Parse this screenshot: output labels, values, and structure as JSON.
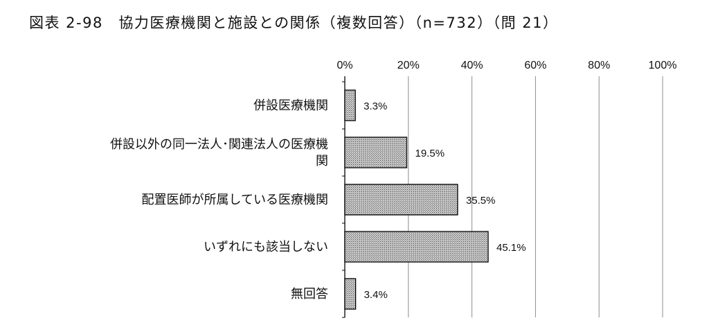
{
  "chart_data": {
    "type": "bar",
    "orientation": "horizontal",
    "title": "図表 2-98　協力医療機関と施設との関係（複数回答）（n=732）（問 21）",
    "categories": [
      [
        "併設医療機関"
      ],
      [
        "併設以外の同一法人･関連法人の医療機",
        "関"
      ],
      [
        "配置医師が所属している医療機関"
      ],
      [
        "いずれにも該当しない"
      ],
      [
        "無回答"
      ]
    ],
    "values": [
      3.3,
      19.5,
      35.5,
      45.1,
      3.4
    ],
    "value_labels": [
      "3.3%",
      "19.5%",
      "35.5%",
      "45.1%",
      "3.4%"
    ],
    "xlim": [
      0,
      100
    ],
    "x_ticks": [
      0,
      20,
      40,
      60,
      80,
      100
    ],
    "x_tick_labels": [
      "0%",
      "20%",
      "40%",
      "60%",
      "80%",
      "100%"
    ],
    "x_axis_position": "top",
    "grid": true,
    "legend": "none",
    "colors": {
      "bar_fill": "#b3b3b3",
      "bar_stroke": "#000000",
      "grid": "#8c8c8c",
      "axis": "#000000"
    }
  }
}
